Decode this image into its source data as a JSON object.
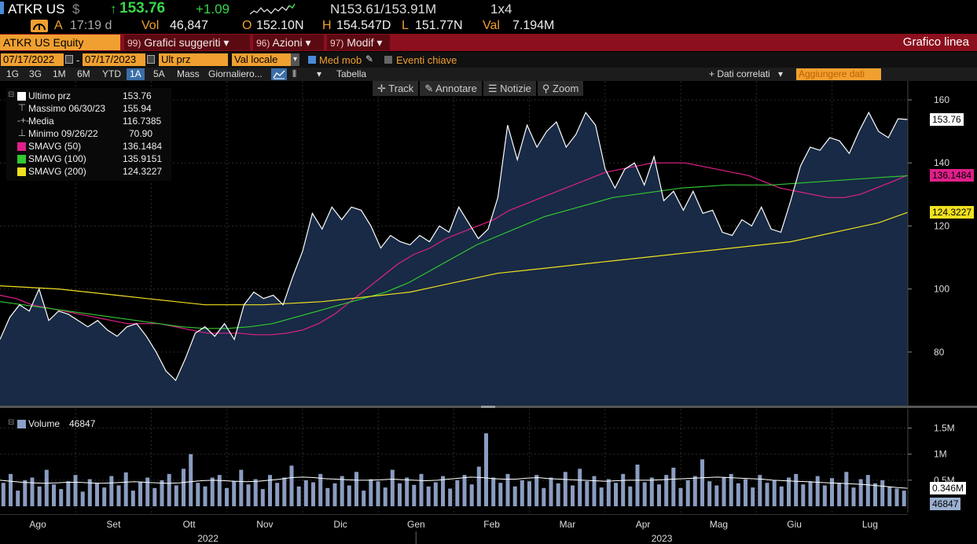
{
  "header": {
    "ticker": "ATKR US",
    "currency": "$",
    "last_price": "153.76",
    "change": "+1.09",
    "bid_ask": "N153.61/153.91M",
    "size": "1x4",
    "time_label": "A",
    "time": "17:19 d",
    "volume_label": "Vol",
    "volume": "46,847",
    "open_label": "O",
    "open": "152.10N",
    "high_label": "H",
    "high": "154.547D",
    "low_label": "L",
    "low": "151.77N",
    "value_label": "Val",
    "value": "7.194M",
    "colors": {
      "up": "#37d64a",
      "label": "#f0a030",
      "value": "#eeeeee"
    }
  },
  "function_bar": {
    "security": "ATKR US Equity",
    "menus": [
      {
        "num": "99)",
        "label": "Grafici suggeriti"
      },
      {
        "num": "96)",
        "label": "Azioni"
      },
      {
        "num": "97)",
        "label": "Modif"
      }
    ],
    "title": "Grafico linea"
  },
  "date_row": {
    "start_date": "07/17/2022",
    "separator": "-",
    "end_date": "07/17/2023",
    "price_field": "Ult prz",
    "currency_field": "Val locale",
    "moving_avg_label": "Med mob",
    "moving_avg_checked": true,
    "key_events_label": "Eventi chiave",
    "key_events_checked": false
  },
  "toolbar": {
    "ranges": [
      "1G",
      "3G",
      "1M",
      "6M",
      "YTD",
      "1A",
      "5A",
      "Mass"
    ],
    "active_range": "1A",
    "frequency": "Giornaliero...",
    "table_label": "Tabella",
    "related_label": "+ Dati correlati",
    "add_data_placeholder": "Aggiungere dati"
  },
  "chart_tools": [
    "Track",
    "Annotare",
    "Notizie",
    "Zoom"
  ],
  "legend": [
    {
      "name": "Ultimo prz",
      "value": "153.76",
      "color": "#ffffff",
      "glyph": "square"
    },
    {
      "name": "Massimo 06/30/23",
      "value": "155.94",
      "color": "#bbbbbb",
      "glyph": "high"
    },
    {
      "name": "Media",
      "value": "116.7385",
      "color": "#bbbbbb",
      "glyph": "avg"
    },
    {
      "name": "Minimo 09/26/22",
      "value": "70.90",
      "color": "#bbbbbb",
      "glyph": "low"
    },
    {
      "name": "SMAVG (50)",
      "value": "136.1484",
      "color": "#e0208a",
      "glyph": "square"
    },
    {
      "name": "SMAVG (100)",
      "value": "135.9151",
      "color": "#32c832",
      "glyph": "square"
    },
    {
      "name": "SMAVG (200)",
      "value": "124.3227",
      "color": "#f0e020",
      "glyph": "square"
    }
  ],
  "price_tags": [
    {
      "label": "153.76",
      "value": 153.76,
      "bg": "#ffffff"
    },
    {
      "label": "136.1484",
      "value": 136.1484,
      "bg": "#e0208a"
    },
    {
      "label": "124.3227",
      "value": 124.3227,
      "bg": "#f0e020"
    }
  ],
  "volume_legend": {
    "name": "Volume",
    "value": "46847"
  },
  "volume_tags": [
    {
      "label": "0.346M",
      "value": 0.346,
      "bg": "#ffffff"
    },
    {
      "label": "46847",
      "value": 0.046847,
      "bg": "#9cb0d0"
    }
  ],
  "chart_data": {
    "type": "line",
    "x_range": [
      "2022-07-18",
      "2023-07-17"
    ],
    "months": [
      "Ago",
      "Set",
      "Ott",
      "Nov",
      "Dic",
      "Gen",
      "Feb",
      "Mar",
      "Apr",
      "Mag",
      "Giu",
      "Lug"
    ],
    "years": [
      "2022",
      "2023"
    ],
    "price_axis": {
      "ticks": [
        80,
        100,
        120,
        140,
        160
      ],
      "ylim": [
        63,
        162
      ]
    },
    "volume_axis": {
      "ticks": [
        "0.5M",
        "1M",
        "1.5M"
      ],
      "tick_values": [
        0.5,
        1.0,
        1.5
      ],
      "ylim": [
        0,
        1.75
      ],
      "unit": "M"
    },
    "series": [
      {
        "name": "Ultimo prz",
        "color": "#ffffff",
        "values": [
          84,
          91,
          95,
          93,
          100,
          90,
          93,
          92,
          90,
          88,
          90,
          87,
          85,
          88,
          89,
          85,
          80,
          74,
          71,
          78,
          86,
          88,
          85,
          89,
          84,
          95,
          99,
          97,
          98,
          95,
          104,
          112,
          124,
          119,
          126,
          122,
          126,
          125,
          120,
          113,
          117,
          115,
          114,
          117,
          115,
          120,
          118,
          126,
          121,
          116,
          119,
          129,
          152,
          141,
          152,
          145,
          150,
          153,
          145,
          149,
          156,
          152,
          138,
          132,
          138,
          140,
          133,
          142,
          128,
          131,
          125,
          131,
          124,
          125,
          118,
          117,
          122,
          120,
          126,
          119,
          118,
          128,
          139,
          145,
          144,
          148,
          147,
          143,
          150,
          156,
          150,
          148,
          154,
          153.76
        ]
      },
      {
        "name": "SMAVG (50)",
        "color": "#e0208a",
        "values": [
          98,
          97,
          95,
          94,
          93,
          92,
          91,
          90,
          89,
          89,
          89,
          88,
          87,
          86,
          86,
          86,
          85.5,
          85.5,
          86,
          87,
          89,
          92,
          96,
          100,
          104,
          108,
          111,
          113,
          116,
          118,
          120,
          122,
          125,
          127,
          129,
          131,
          133,
          135,
          137,
          138,
          139,
          140,
          140,
          140,
          139,
          138,
          137,
          136,
          134,
          132,
          131,
          130,
          129,
          129,
          130,
          132,
          134,
          136.1484
        ]
      },
      {
        "name": "SMAVG (100)",
        "color": "#32c832",
        "values": [
          96,
          95,
          94,
          93,
          92,
          91,
          90,
          89,
          88,
          87.5,
          87.5,
          88,
          89,
          91,
          93,
          95,
          97,
          99,
          102,
          106,
          110,
          114,
          117,
          120,
          123,
          125,
          127,
          129,
          130,
          131,
          132,
          132.5,
          133,
          133,
          133,
          133.5,
          134,
          134.5,
          135,
          135.5,
          135.9151
        ]
      },
      {
        "name": "SMAVG (200)",
        "color": "#f0e020",
        "values": [
          101,
          100.5,
          100,
          99,
          98,
          97,
          96,
          95,
          95,
          95,
          95.5,
          96,
          97,
          98,
          99,
          101,
          103,
          105,
          106,
          107,
          108,
          109,
          110,
          111,
          112,
          113,
          114,
          115,
          117,
          119,
          121,
          124.3227
        ]
      }
    ],
    "volume": {
      "name": "Volume",
      "values_m": [
        0.45,
        0.62,
        0.3,
        0.5,
        0.55,
        0.38,
        0.7,
        0.42,
        0.33,
        0.48,
        0.6,
        0.28,
        0.52,
        0.44,
        0.36,
        0.58,
        0.4,
        0.65,
        0.3,
        0.47,
        0.55,
        0.35,
        0.5,
        0.62,
        0.4,
        0.72,
        1.0,
        0.45,
        0.38,
        0.55,
        0.6,
        0.35,
        0.48,
        0.7,
        0.42,
        0.52,
        0.33,
        0.6,
        0.45,
        0.55,
        0.78,
        0.38,
        0.5,
        0.46,
        0.62,
        0.35,
        0.44,
        0.58,
        0.4,
        0.66,
        0.3,
        0.52,
        0.48,
        0.36,
        0.7,
        0.44,
        0.55,
        0.41,
        0.62,
        0.38,
        0.46,
        0.58,
        0.34,
        0.5,
        0.6,
        0.42,
        0.76,
        1.4,
        0.55,
        0.45,
        0.62,
        0.38,
        0.5,
        0.48,
        0.6,
        0.35,
        0.55,
        0.44,
        0.66,
        0.4,
        0.72,
        0.48,
        0.58,
        0.36,
        0.52,
        0.45,
        0.62,
        0.38,
        0.8,
        0.46,
        0.55,
        0.42,
        0.6,
        0.74,
        0.35,
        0.5,
        0.58,
        0.9,
        0.48,
        0.4,
        0.56,
        0.62,
        0.44,
        0.52,
        0.36,
        0.6,
        0.45,
        0.5,
        0.38,
        0.55,
        0.62,
        0.42,
        0.48,
        0.58,
        0.4,
        0.54,
        0.45,
        0.66,
        0.36,
        0.52,
        0.6,
        0.44,
        0.5,
        0.38,
        0.34,
        0.3
      ],
      "avg_m": [
        0.5,
        0.48,
        0.46,
        0.45,
        0.44,
        0.45,
        0.46,
        0.46,
        0.45,
        0.44,
        0.45,
        0.46,
        0.47,
        0.46,
        0.45,
        0.44,
        0.45,
        0.47,
        0.49,
        0.5,
        0.49,
        0.48,
        0.47,
        0.48,
        0.5,
        0.52,
        0.55,
        0.56,
        0.55,
        0.53,
        0.52,
        0.51,
        0.5,
        0.5,
        0.51,
        0.52,
        0.51,
        0.5,
        0.49,
        0.5,
        0.52,
        0.54,
        0.56,
        0.55,
        0.53,
        0.52,
        0.52,
        0.54,
        0.55,
        0.53,
        0.52,
        0.51,
        0.5,
        0.49,
        0.48,
        0.49,
        0.5,
        0.5,
        0.5,
        0.51,
        0.52,
        0.53,
        0.54,
        0.55,
        0.56,
        0.55,
        0.54,
        0.53,
        0.52,
        0.5,
        0.49,
        0.48,
        0.47,
        0.46,
        0.45,
        0.44,
        0.43,
        0.42,
        0.4,
        0.38,
        0.36,
        0.346
      ]
    }
  }
}
